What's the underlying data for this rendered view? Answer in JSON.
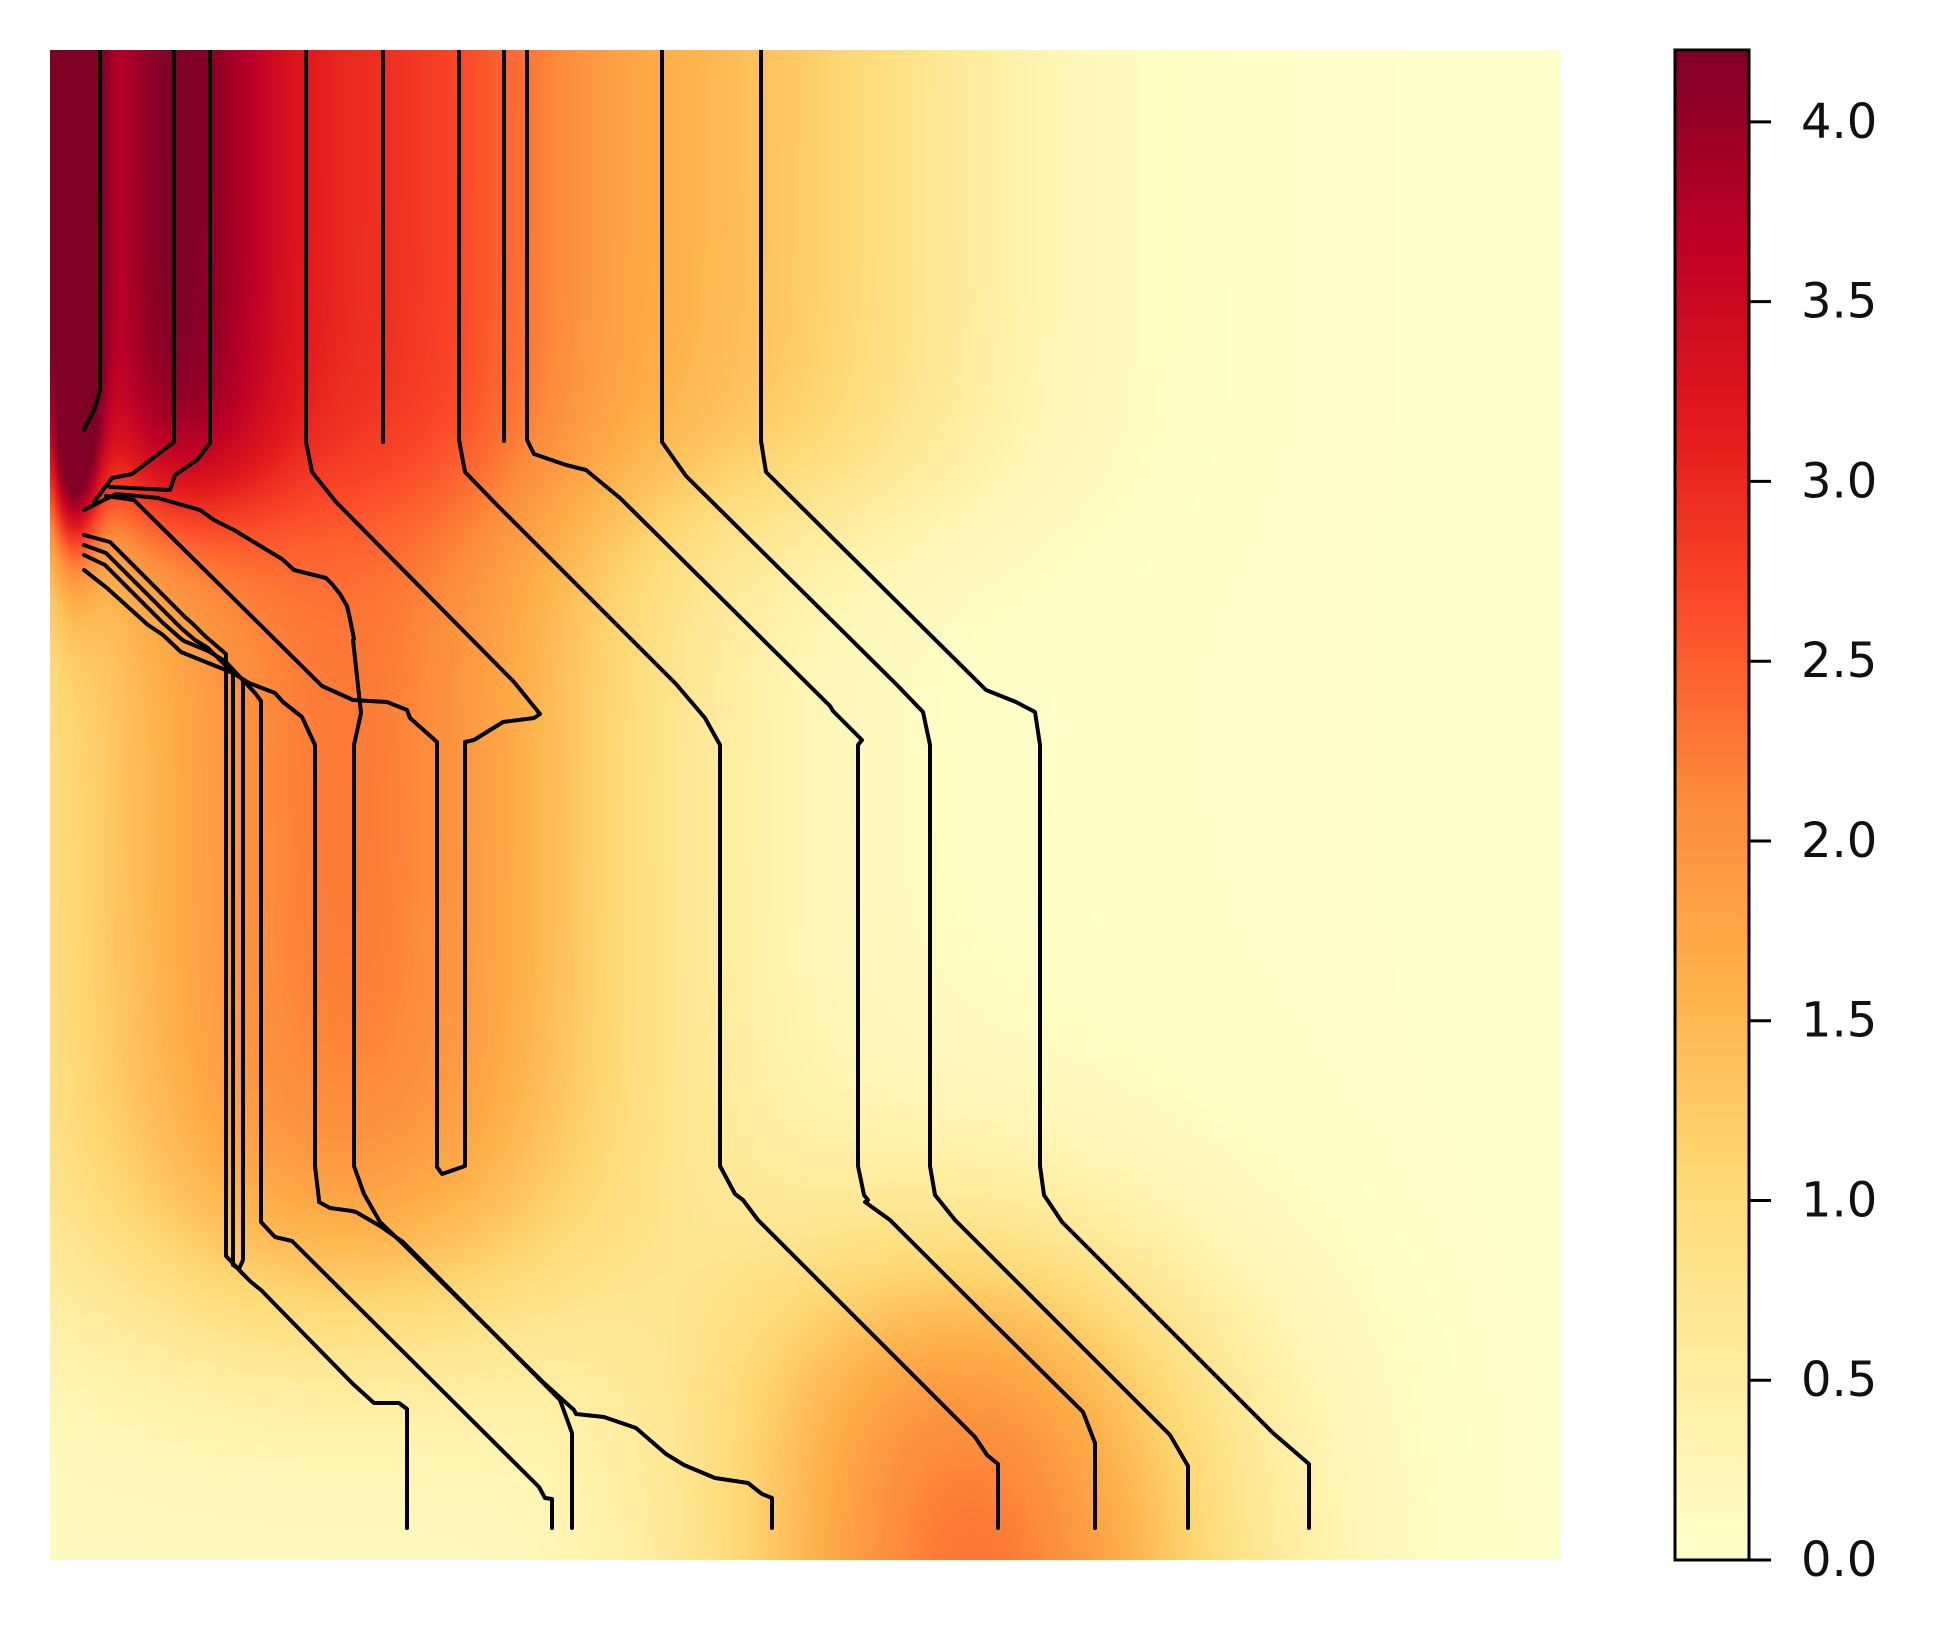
{
  "chart_data": {
    "type": "heatmap",
    "title": "",
    "xlabel": "",
    "ylabel": "",
    "axes_visible": false,
    "colormap": "YlOrRd",
    "colormap_stops": [
      "#ffffcc",
      "#ffeda0",
      "#fed976",
      "#feb24c",
      "#fd8d3c",
      "#fc4e2a",
      "#e31a1c",
      "#bd0026",
      "#800026"
    ],
    "value_range": [
      0.0,
      4.2
    ],
    "contour_color": "#000000",
    "colorbar": {
      "placement": "right",
      "ticks": [
        {
          "value": 0.0,
          "label": "0.0"
        },
        {
          "value": 0.5,
          "label": "0.5"
        },
        {
          "value": 1.0,
          "label": "1.0"
        },
        {
          "value": 1.5,
          "label": "1.5"
        },
        {
          "value": 2.0,
          "label": "2.0"
        },
        {
          "value": 2.5,
          "label": "2.5"
        },
        {
          "value": 3.0,
          "label": "3.0"
        },
        {
          "value": 3.5,
          "label": "3.5"
        },
        {
          "value": 4.0,
          "label": "4.0"
        }
      ]
    }
  }
}
